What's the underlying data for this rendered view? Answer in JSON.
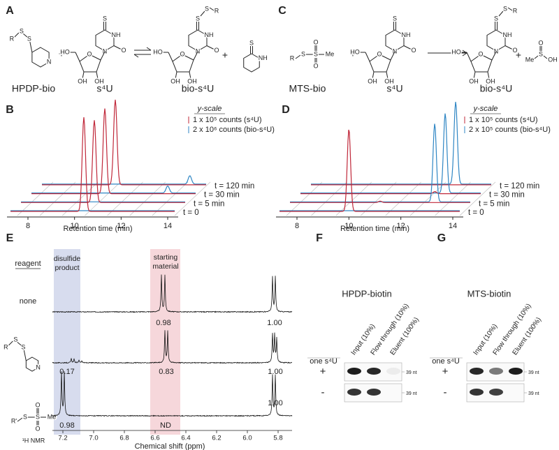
{
  "atoms": {
    "S": "S",
    "R": "R",
    "R1": "R'",
    "N": "N",
    "NH": "NH",
    "O": "O",
    "OH": "OH",
    "HO": "HO",
    "Me": "Me",
    "plus": "+"
  },
  "panel_a": {
    "label": "A",
    "reagent": "HPDP-bio",
    "substrate": "s⁴U",
    "product": "bio-s⁴U"
  },
  "panel_c": {
    "label": "C",
    "reagent": "MTS-bio",
    "substrate": "s⁴U",
    "product": "bio-s⁴U"
  },
  "panel_b": {
    "label": "B",
    "yscale_title": "y-scale",
    "scale_red": "1 x 10⁵ counts (s⁴U)",
    "scale_blue": "2 x 10⁶ counts (bio-s⁴U)",
    "traces": [
      "t = 0",
      "t = 5 min",
      "t = 30 min",
      "t = 120 min"
    ],
    "xticks": [
      "8",
      "10",
      "12",
      "14"
    ],
    "xlabel": "Retention time (min)"
  },
  "panel_d": {
    "label": "D",
    "yscale_title": "y-scale",
    "scale_red": "1 x 10⁵ counts (s⁴U)",
    "scale_blue": "2 x 10⁵ counts (bio-s⁴U)",
    "traces": [
      "t = 0",
      "t = 5 min",
      "t = 30 min",
      "t = 120 min"
    ],
    "xticks": [
      "8",
      "10",
      "12",
      "14"
    ],
    "xlabel": "Retention time (min)"
  },
  "panel_e": {
    "label": "E",
    "reagent_header": "reagent",
    "band_product": [
      "disulfide",
      "product"
    ],
    "band_start": [
      "starting",
      "material"
    ],
    "row_none": "none",
    "integrals": [
      [
        "0.98",
        "1.00"
      ],
      [
        "0.17",
        "0.83",
        "1.00"
      ],
      [
        "0.98",
        "ND",
        "1.00"
      ]
    ],
    "xticks": [
      "7.2",
      "7.0",
      "6.8",
      "6.6",
      "6.4",
      "6.2",
      "6.0",
      "5.8"
    ],
    "xlabel": "Chemical shift (ppm)",
    "method": "¹H NMR"
  },
  "panel_f": {
    "label": "F",
    "title": "HPDP-biotin",
    "lanes": [
      "Input (10%)",
      "Flow through (10%)",
      "Eluent (100%)"
    ],
    "row_header": "one s⁴U",
    "rows": [
      "+",
      "-"
    ],
    "marker": "39 nt"
  },
  "panel_g": {
    "label": "G",
    "title": "MTS-biotin",
    "lanes": [
      "Input (10%)",
      "Flow through (10%)",
      "Eluent (100%)"
    ],
    "row_header": "one s⁴U",
    "rows": [
      "+",
      "-"
    ],
    "marker": "39 nt"
  }
}
